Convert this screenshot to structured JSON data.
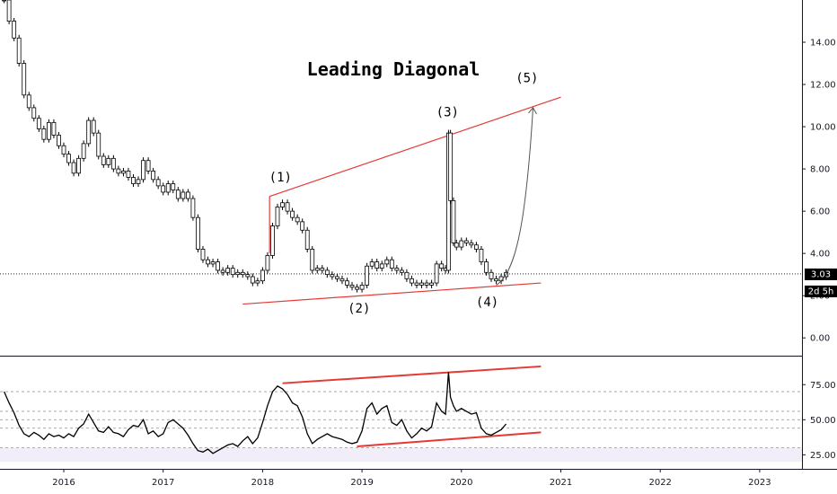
{
  "chart_data": {
    "type": "candlestick",
    "title": "Leading Diagonal",
    "x_ticks": [
      "2016",
      "2017",
      "2018",
      "2019",
      "2020",
      "2021",
      "2022",
      "2023"
    ],
    "price_panel": {
      "y_ticks": [
        "0.00",
        "2.00",
        "4.00",
        "6.00",
        "8.00",
        "10.00",
        "12.00",
        "14.00"
      ],
      "ylim": [
        -0.8,
        16
      ],
      "last_price": {
        "value": 3.03,
        "label": "3.03"
      },
      "countdown_label": "2d 5h",
      "wave_labels": [
        {
          "text": "(1)",
          "t": 2018.18,
          "v": 7.4
        },
        {
          "text": "(2)",
          "t": 2018.97,
          "v": 1.2
        },
        {
          "text": "(3)",
          "t": 2019.86,
          "v": 10.5
        },
        {
          "text": "(4)",
          "t": 2020.26,
          "v": 1.5
        },
        {
          "text": "(5)",
          "t": 2020.66,
          "v": 12.1
        }
      ],
      "trendlines": [
        {
          "name": "upper",
          "from": [
            2018.07,
            6.7
          ],
          "to": [
            2021.0,
            11.4
          ]
        },
        {
          "name": "lower",
          "from": [
            2017.8,
            1.6
          ],
          "to": [
            2020.8,
            2.6
          ]
        }
      ],
      "projection": [
        [
          2020.35,
          2.5
        ],
        [
          2020.55,
          3.1
        ],
        [
          2020.65,
          5.5
        ],
        [
          2020.72,
          10.9
        ]
      ],
      "series": [
        [
          2015.4,
          16.0
        ],
        [
          2015.45,
          15.0
        ],
        [
          2015.5,
          14.2
        ],
        [
          2015.55,
          13.0
        ],
        [
          2015.6,
          11.5
        ],
        [
          2015.65,
          10.9
        ],
        [
          2015.7,
          10.4
        ],
        [
          2015.75,
          9.9
        ],
        [
          2015.8,
          9.4
        ],
        [
          2015.85,
          10.2
        ],
        [
          2015.9,
          9.6
        ],
        [
          2015.95,
          9.1
        ],
        [
          2016.0,
          8.7
        ],
        [
          2016.05,
          8.3
        ],
        [
          2016.1,
          7.8
        ],
        [
          2016.15,
          8.5
        ],
        [
          2016.2,
          9.2
        ],
        [
          2016.25,
          10.3
        ],
        [
          2016.3,
          9.7
        ],
        [
          2016.35,
          8.6
        ],
        [
          2016.4,
          8.2
        ],
        [
          2016.45,
          8.5
        ],
        [
          2016.5,
          8.0
        ],
        [
          2016.55,
          7.8
        ],
        [
          2016.6,
          7.9
        ],
        [
          2016.65,
          7.6
        ],
        [
          2016.7,
          7.3
        ],
        [
          2016.75,
          7.5
        ],
        [
          2016.8,
          8.4
        ],
        [
          2016.85,
          7.9
        ],
        [
          2016.9,
          7.5
        ],
        [
          2016.95,
          7.2
        ],
        [
          2017.0,
          6.9
        ],
        [
          2017.05,
          7.3
        ],
        [
          2017.1,
          7.0
        ],
        [
          2017.15,
          6.6
        ],
        [
          2017.2,
          6.9
        ],
        [
          2017.25,
          6.6
        ],
        [
          2017.3,
          5.7
        ],
        [
          2017.35,
          4.2
        ],
        [
          2017.4,
          3.7
        ],
        [
          2017.45,
          3.5
        ],
        [
          2017.5,
          3.6
        ],
        [
          2017.55,
          3.2
        ],
        [
          2017.6,
          3.1
        ],
        [
          2017.65,
          3.3
        ],
        [
          2017.7,
          3.0
        ],
        [
          2017.75,
          3.1
        ],
        [
          2017.8,
          3.0
        ],
        [
          2017.85,
          2.9
        ],
        [
          2017.9,
          2.6
        ],
        [
          2017.95,
          2.7
        ],
        [
          2018.0,
          3.2
        ],
        [
          2018.05,
          3.9
        ],
        [
          2018.1,
          5.3
        ],
        [
          2018.15,
          6.2
        ],
        [
          2018.2,
          6.4
        ],
        [
          2018.25,
          6.0
        ],
        [
          2018.3,
          5.7
        ],
        [
          2018.35,
          5.5
        ],
        [
          2018.4,
          5.1
        ],
        [
          2018.45,
          4.2
        ],
        [
          2018.5,
          3.2
        ],
        [
          2018.55,
          3.3
        ],
        [
          2018.6,
          3.2
        ],
        [
          2018.65,
          3.0
        ],
        [
          2018.7,
          2.9
        ],
        [
          2018.75,
          2.8
        ],
        [
          2018.8,
          2.7
        ],
        [
          2018.85,
          2.5
        ],
        [
          2018.9,
          2.4
        ],
        [
          2018.95,
          2.3
        ],
        [
          2019.0,
          2.5
        ],
        [
          2019.05,
          3.4
        ],
        [
          2019.1,
          3.6
        ],
        [
          2019.15,
          3.3
        ],
        [
          2019.2,
          3.5
        ],
        [
          2019.25,
          3.7
        ],
        [
          2019.3,
          3.3
        ],
        [
          2019.35,
          3.2
        ],
        [
          2019.4,
          3.1
        ],
        [
          2019.45,
          2.8
        ],
        [
          2019.5,
          2.6
        ],
        [
          2019.55,
          2.5
        ],
        [
          2019.6,
          2.6
        ],
        [
          2019.65,
          2.5
        ],
        [
          2019.7,
          2.6
        ],
        [
          2019.75,
          3.5
        ],
        [
          2019.8,
          3.3
        ],
        [
          2019.84,
          3.2
        ],
        [
          2019.87,
          9.7
        ],
        [
          2019.89,
          6.5
        ],
        [
          2019.92,
          4.5
        ],
        [
          2019.95,
          4.3
        ],
        [
          2020.0,
          4.6
        ],
        [
          2020.05,
          4.5
        ],
        [
          2020.1,
          4.4
        ],
        [
          2020.15,
          4.2
        ],
        [
          2020.2,
          3.6
        ],
        [
          2020.25,
          3.1
        ],
        [
          2020.3,
          2.8
        ],
        [
          2020.35,
          2.7
        ],
        [
          2020.4,
          2.9
        ],
        [
          2020.45,
          3.1
        ]
      ]
    },
    "rsi_panel": {
      "y_ticks": [
        "25.00",
        "50.00",
        "75.00"
      ],
      "ylim": [
        15,
        95
      ],
      "levels": [
        30,
        44,
        50,
        56,
        70
      ],
      "band": [
        20,
        30
      ],
      "trendlines": [
        {
          "name": "upper",
          "from": [
            2018.2,
            76
          ],
          "to": [
            2020.8,
            88
          ]
        },
        {
          "name": "lower",
          "from": [
            2018.95,
            31
          ],
          "to": [
            2020.8,
            41
          ]
        }
      ],
      "series": [
        [
          2015.4,
          70
        ],
        [
          2015.45,
          62
        ],
        [
          2015.5,
          55
        ],
        [
          2015.55,
          46
        ],
        [
          2015.6,
          40
        ],
        [
          2015.65,
          38
        ],
        [
          2015.7,
          41
        ],
        [
          2015.75,
          39
        ],
        [
          2015.8,
          36
        ],
        [
          2015.85,
          40
        ],
        [
          2015.9,
          38
        ],
        [
          2015.95,
          39
        ],
        [
          2016.0,
          37
        ],
        [
          2016.05,
          40
        ],
        [
          2016.1,
          38
        ],
        [
          2016.15,
          44
        ],
        [
          2016.2,
          47
        ],
        [
          2016.25,
          54
        ],
        [
          2016.3,
          48
        ],
        [
          2016.35,
          42
        ],
        [
          2016.4,
          41
        ],
        [
          2016.45,
          45
        ],
        [
          2016.5,
          41
        ],
        [
          2016.55,
          40
        ],
        [
          2016.6,
          38
        ],
        [
          2016.65,
          43
        ],
        [
          2016.7,
          46
        ],
        [
          2016.75,
          45
        ],
        [
          2016.8,
          50
        ],
        [
          2016.85,
          40
        ],
        [
          2016.9,
          42
        ],
        [
          2016.95,
          38
        ],
        [
          2017.0,
          40
        ],
        [
          2017.05,
          48
        ],
        [
          2017.1,
          50
        ],
        [
          2017.15,
          47
        ],
        [
          2017.2,
          44
        ],
        [
          2017.25,
          39
        ],
        [
          2017.3,
          33
        ],
        [
          2017.35,
          28
        ],
        [
          2017.4,
          27
        ],
        [
          2017.45,
          29
        ],
        [
          2017.5,
          26
        ],
        [
          2017.55,
          28
        ],
        [
          2017.6,
          30
        ],
        [
          2017.65,
          32
        ],
        [
          2017.7,
          33
        ],
        [
          2017.75,
          31
        ],
        [
          2017.8,
          35
        ],
        [
          2017.85,
          38
        ],
        [
          2017.9,
          33
        ],
        [
          2017.95,
          37
        ],
        [
          2018.0,
          48
        ],
        [
          2018.05,
          60
        ],
        [
          2018.1,
          70
        ],
        [
          2018.15,
          74
        ],
        [
          2018.2,
          72
        ],
        [
          2018.25,
          68
        ],
        [
          2018.3,
          62
        ],
        [
          2018.35,
          60
        ],
        [
          2018.4,
          52
        ],
        [
          2018.45,
          40
        ],
        [
          2018.5,
          33
        ],
        [
          2018.55,
          36
        ],
        [
          2018.6,
          38
        ],
        [
          2018.65,
          40
        ],
        [
          2018.7,
          38
        ],
        [
          2018.75,
          37
        ],
        [
          2018.8,
          36
        ],
        [
          2018.85,
          34
        ],
        [
          2018.9,
          33
        ],
        [
          2018.95,
          34
        ],
        [
          2019.0,
          42
        ],
        [
          2019.05,
          58
        ],
        [
          2019.1,
          62
        ],
        [
          2019.15,
          54
        ],
        [
          2019.2,
          58
        ],
        [
          2019.25,
          60
        ],
        [
          2019.3,
          48
        ],
        [
          2019.35,
          46
        ],
        [
          2019.4,
          50
        ],
        [
          2019.45,
          42
        ],
        [
          2019.5,
          37
        ],
        [
          2019.55,
          40
        ],
        [
          2019.6,
          44
        ],
        [
          2019.65,
          42
        ],
        [
          2019.7,
          45
        ],
        [
          2019.75,
          62
        ],
        [
          2019.8,
          56
        ],
        [
          2019.84,
          54
        ],
        [
          2019.87,
          84
        ],
        [
          2019.89,
          66
        ],
        [
          2019.92,
          60
        ],
        [
          2019.95,
          56
        ],
        [
          2020.0,
          58
        ],
        [
          2020.05,
          56
        ],
        [
          2020.1,
          54
        ],
        [
          2020.15,
          55
        ],
        [
          2020.2,
          44
        ],
        [
          2020.25,
          40
        ],
        [
          2020.3,
          39
        ],
        [
          2020.35,
          41
        ],
        [
          2020.4,
          43
        ],
        [
          2020.45,
          47
        ]
      ]
    }
  }
}
